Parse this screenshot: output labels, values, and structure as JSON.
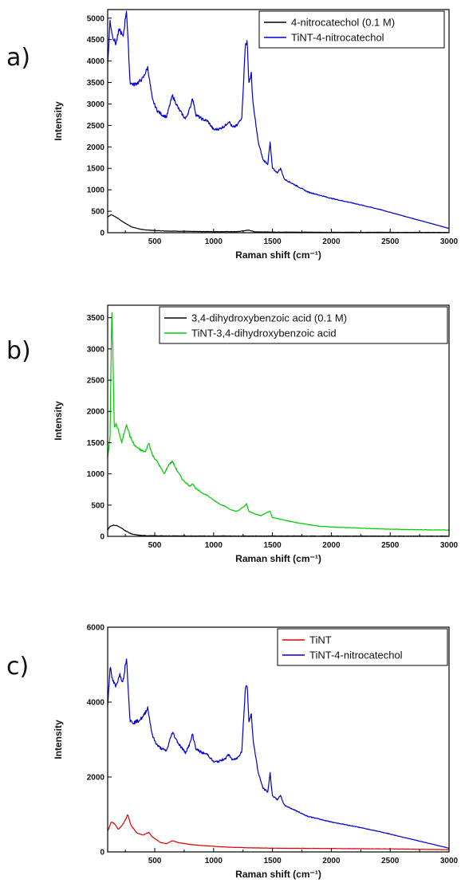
{
  "panels": [
    {
      "letter": "a)",
      "chart_data": {
        "type": "line",
        "xlabel": "Raman shift (cm⁻¹)",
        "ylabel": "Intensity",
        "xlim": [
          100,
          3000
        ],
        "ylim": [
          0,
          5200
        ],
        "xticks": [
          500,
          1000,
          1500,
          2000,
          2500,
          3000
        ],
        "yticks": [
          0,
          500,
          1000,
          1500,
          2000,
          2500,
          3000,
          3500,
          4000,
          4500,
          5000
        ],
        "legend_position": "top-right",
        "grid": false,
        "series": [
          {
            "name": "4-nitrocatechol (0.1 M)",
            "color": "#000000",
            "x": [
              100,
              130,
              160,
              190,
              220,
              250,
              300,
              350,
              400,
              500,
              600,
              700,
              800,
              1000,
              1200,
              1300,
              1350,
              1500,
              2000,
              2500,
              3000
            ],
            "y": [
              370,
              420,
              380,
              330,
              270,
              220,
              140,
              100,
              70,
              50,
              40,
              35,
              30,
              25,
              25,
              60,
              20,
              15,
              10,
              8,
              5
            ]
          },
          {
            "name": "TiNT-4-nitrocatechol",
            "color": "#0000cc",
            "x": [
              100,
              120,
              140,
              170,
              200,
              230,
              260,
              290,
              320,
              360,
              400,
              440,
              480,
              520,
              560,
              600,
              650,
              700,
              760,
              800,
              820,
              850,
              900,
              950,
              1000,
              1050,
              1100,
              1130,
              1160,
              1200,
              1240,
              1270,
              1285,
              1300,
              1320,
              1335,
              1350,
              1380,
              1420,
              1460,
              1480,
              1500,
              1540,
              1570,
              1600,
              1700,
              1800,
              2000,
              2200,
              2400,
              2600,
              2800,
              3000
            ],
            "y": [
              3900,
              4950,
              4600,
              4400,
              4750,
              4550,
              5200,
              3500,
              3450,
              3500,
              3600,
              3850,
              3100,
              2850,
              2750,
              2700,
              3200,
              2900,
              2650,
              2900,
              3150,
              2750,
              2650,
              2600,
              2400,
              2420,
              2500,
              2600,
              2450,
              2500,
              2700,
              4400,
              4450,
              3500,
              3700,
              3000,
              2700,
              2100,
              1700,
              1600,
              2100,
              1500,
              1400,
              1500,
              1250,
              1100,
              950,
              800,
              680,
              550,
              400,
              250,
              100
            ]
          }
        ]
      }
    },
    {
      "letter": "b)",
      "chart_data": {
        "type": "line",
        "xlabel": "Raman shift (cm⁻¹)",
        "ylabel": "Intensity",
        "xlim": [
          100,
          3000
        ],
        "ylim": [
          0,
          3700
        ],
        "xticks": [
          500,
          1000,
          1500,
          2000,
          2500,
          3000
        ],
        "yticks": [
          0,
          500,
          1000,
          1500,
          2000,
          2500,
          3000,
          3500
        ],
        "legend_position": "top-right",
        "grid": false,
        "series": [
          {
            "name": "3,4-dihydroxybenzoic acid (0.1 M)",
            "color": "#000000",
            "x": [
              100,
              120,
              150,
              180,
              210,
              250,
              300,
              350,
              400,
              500,
              700,
              1000,
              1500,
              2000,
              2500,
              3000
            ],
            "y": [
              100,
              160,
              180,
              170,
              140,
              90,
              40,
              20,
              12,
              8,
              6,
              5,
              5,
              4,
              3,
              3
            ],
            "dense": [
              900,
              1100,
              1400
            ]
          },
          {
            "name": "TiNT-3,4-dihydroxybenzoic acid",
            "color": "#00cc00",
            "x": [
              100,
              120,
              135,
              145,
              155,
              170,
              190,
              220,
              260,
              290,
              330,
              380,
              420,
              450,
              480,
              520,
              580,
              620,
              650,
              690,
              740,
              800,
              820,
              850,
              900,
              950,
              1000,
              1050,
              1100,
              1150,
              1200,
              1260,
              1280,
              1300,
              1350,
              1400,
              1450,
              1480,
              1500,
              1550,
              1600,
              1700,
              1800,
              1900,
              2000,
              2200,
              2400,
              2600,
              2800,
              3000
            ],
            "y": [
              1250,
              1600,
              3650,
              2900,
              1750,
              1800,
              1700,
              1500,
              1800,
              1600,
              1450,
              1380,
              1350,
              1500,
              1300,
              1200,
              1000,
              1150,
              1200,
              1050,
              900,
              800,
              850,
              760,
              700,
              650,
              580,
              520,
              480,
              420,
              400,
              480,
              520,
              400,
              360,
              330,
              380,
              400,
              300,
              280,
              260,
              220,
              190,
              160,
              150,
              135,
              120,
              110,
              105,
              100
            ]
          }
        ]
      }
    },
    {
      "letter": "c)",
      "chart_data": {
        "type": "line",
        "xlabel": "Raman shift (cm⁻¹)",
        "ylabel": "Intensity",
        "xlim": [
          100,
          3000
        ],
        "ylim": [
          0,
          6000
        ],
        "xticks": [
          500,
          1000,
          1500,
          2000,
          2500,
          3000
        ],
        "yticks": [
          0,
          2000,
          4000,
          6000
        ],
        "legend_position": "top-right",
        "grid": false,
        "series": [
          {
            "name": "TiNT",
            "color": "#dd0000",
            "x": [
              100,
              130,
              160,
              190,
              220,
              250,
              270,
              300,
              350,
              400,
              450,
              480,
              550,
              600,
              650,
              700,
              800,
              900,
              1000,
              1100,
              1300,
              1500,
              2000,
              2500,
              3000
            ],
            "y": [
              550,
              800,
              750,
              600,
              700,
              850,
              1000,
              700,
              500,
              450,
              520,
              400,
              250,
              220,
              300,
              250,
              200,
              170,
              150,
              130,
              110,
              100,
              90,
              80,
              60
            ]
          },
          {
            "name": "TiNT-4-nitrocatechol",
            "color": "#0000cc",
            "x": [
              100,
              120,
              140,
              170,
              200,
              230,
              260,
              290,
              320,
              360,
              400,
              440,
              480,
              520,
              560,
              600,
              650,
              700,
              760,
              800,
              820,
              850,
              900,
              950,
              1000,
              1050,
              1100,
              1130,
              1160,
              1200,
              1240,
              1270,
              1285,
              1300,
              1320,
              1335,
              1350,
              1380,
              1420,
              1460,
              1480,
              1500,
              1540,
              1570,
              1600,
              1700,
              1800,
              2000,
              2200,
              2400,
              2600,
              2800,
              3000
            ],
            "y": [
              3900,
              4950,
              4600,
              4400,
              4750,
              4550,
              5200,
              3500,
              3450,
              3500,
              3600,
              3850,
              3100,
              2850,
              2750,
              2700,
              3200,
              2900,
              2650,
              2900,
              3150,
              2750,
              2650,
              2600,
              2400,
              2420,
              2500,
              2600,
              2450,
              2500,
              2700,
              4400,
              4450,
              3500,
              3700,
              3000,
              2700,
              2100,
              1700,
              1600,
              2100,
              1500,
              1400,
              1500,
              1250,
              1100,
              950,
              800,
              680,
              550,
              400,
              250,
              100
            ]
          }
        ]
      }
    }
  ]
}
